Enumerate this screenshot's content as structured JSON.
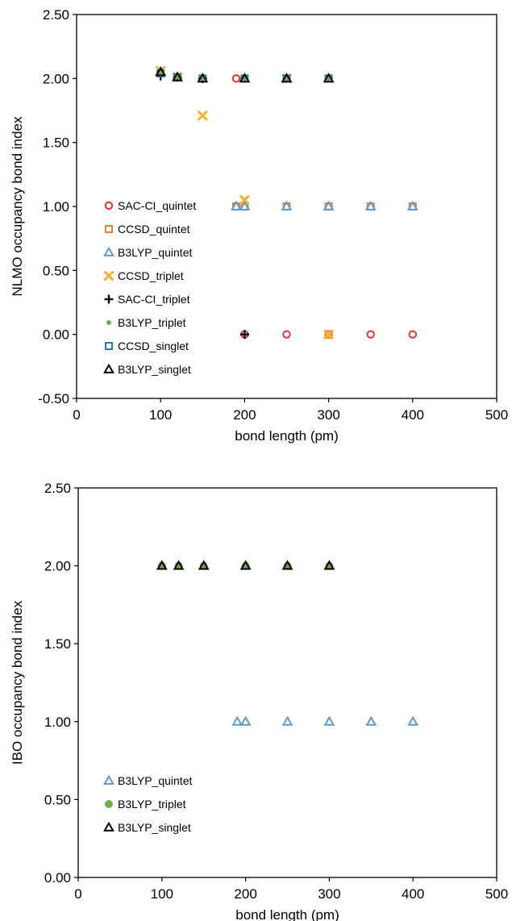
{
  "chart_data": [
    {
      "type": "scatter",
      "xlabel": "bond length (pm)",
      "ylabel": "NLMO occupancy bond index",
      "xlim": [
        0,
        500
      ],
      "ylim": [
        -0.5,
        2.5
      ],
      "xticks": [
        "0",
        "100",
        "200",
        "300",
        "400",
        "500"
      ],
      "yticks": [
        "-0.50",
        "0.00",
        "0.50",
        "1.00",
        "1.50",
        "2.00",
        "2.50"
      ],
      "grid": false,
      "legend_position": "bottom-left",
      "series": [
        {
          "name": "SAC-CI_quintet",
          "marker": "circle",
          "color": "#e8322d",
          "points": [
            [
              190,
              2.0
            ],
            [
              200,
              0.0
            ],
            [
              250,
              0.0
            ],
            [
              300,
              0.0
            ],
            [
              350,
              0.0
            ],
            [
              400,
              0.0
            ]
          ]
        },
        {
          "name": "CCSD_quintet",
          "marker": "square",
          "color": "#ed7d31",
          "points": [
            [
              190,
              1.0
            ],
            [
              200,
              1.0
            ],
            [
              250,
              1.0
            ],
            [
              300,
              1.0
            ],
            [
              350,
              1.0
            ],
            [
              400,
              1.0
            ],
            [
              300,
              0.0
            ]
          ]
        },
        {
          "name": "B3LYP_quintet",
          "marker": "triangle",
          "color": "#5b9bd5",
          "points": [
            [
              190,
              1.0
            ],
            [
              200,
              1.0
            ],
            [
              250,
              1.0
            ],
            [
              300,
              1.0
            ],
            [
              350,
              1.0
            ],
            [
              400,
              1.0
            ]
          ]
        },
        {
          "name": "CCSD_triplet",
          "marker": "x",
          "color": "#f5b030",
          "points": [
            [
              100,
              2.06
            ],
            [
              120,
              2.01
            ],
            [
              150,
              1.71
            ],
            [
              200,
              1.05
            ],
            [
              250,
              2.0
            ],
            [
              300,
              0.0
            ]
          ]
        },
        {
          "name": "SAC-CI_triplet",
          "marker": "plus",
          "color": "#000000",
          "points": [
            [
              100,
              2.02
            ],
            [
              120,
              2.01
            ],
            [
              150,
              2.0
            ],
            [
              200,
              0.0
            ]
          ]
        },
        {
          "name": "B3LYP_triplet",
          "marker": "dot",
          "color": "#70ad47",
          "points": [
            [
              100,
              2.04
            ],
            [
              120,
              2.01
            ],
            [
              150,
              2.0
            ],
            [
              200,
              2.0
            ],
            [
              250,
              2.0
            ],
            [
              300,
              2.0
            ]
          ]
        },
        {
          "name": "CCSD_singlet",
          "marker": "square",
          "color": "#2e75b6",
          "points": [
            [
              100,
              2.04
            ],
            [
              120,
              2.01
            ],
            [
              150,
              2.0
            ],
            [
              200,
              2.0
            ],
            [
              250,
              2.0
            ],
            [
              300,
              2.0
            ]
          ]
        },
        {
          "name": "B3LYP_singlet",
          "marker": "triangle",
          "color": "#000000",
          "points": [
            [
              100,
              2.05
            ],
            [
              120,
              2.01
            ],
            [
              150,
              2.0
            ],
            [
              200,
              2.0
            ],
            [
              250,
              2.0
            ],
            [
              300,
              2.0
            ]
          ]
        }
      ]
    },
    {
      "type": "scatter",
      "xlabel": "bond length (pm)",
      "ylabel": "IBO occupancy bond index",
      "xlim": [
        0,
        500
      ],
      "ylim": [
        0,
        2.5
      ],
      "xticks": [
        "0",
        "100",
        "200",
        "300",
        "400",
        "500"
      ],
      "yticks": [
        "0.00",
        "0.50",
        "1.00",
        "1.50",
        "2.00",
        "2.50"
      ],
      "grid": false,
      "legend_position": "bottom-left",
      "series": [
        {
          "name": "B3LYP_quintet",
          "marker": "triangle",
          "color": "#5b9bd5",
          "points": [
            [
              190,
              1.0
            ],
            [
              200,
              1.0
            ],
            [
              250,
              1.0
            ],
            [
              300,
              1.0
            ],
            [
              350,
              1.0
            ],
            [
              400,
              1.0
            ]
          ]
        },
        {
          "name": "B3LYP_triplet",
          "marker": "dot",
          "color": "#70ad47",
          "points": [
            [
              100,
              2.0
            ],
            [
              120,
              2.0
            ],
            [
              150,
              2.0
            ],
            [
              200,
              2.0
            ],
            [
              250,
              2.0
            ],
            [
              300,
              2.0
            ]
          ]
        },
        {
          "name": "B3LYP_singlet",
          "marker": "triangle",
          "color": "#000000",
          "points": [
            [
              100,
              2.0
            ],
            [
              120,
              2.0
            ],
            [
              150,
              2.0
            ],
            [
              200,
              2.0
            ],
            [
              250,
              2.0
            ],
            [
              300,
              2.0
            ]
          ]
        }
      ]
    }
  ]
}
